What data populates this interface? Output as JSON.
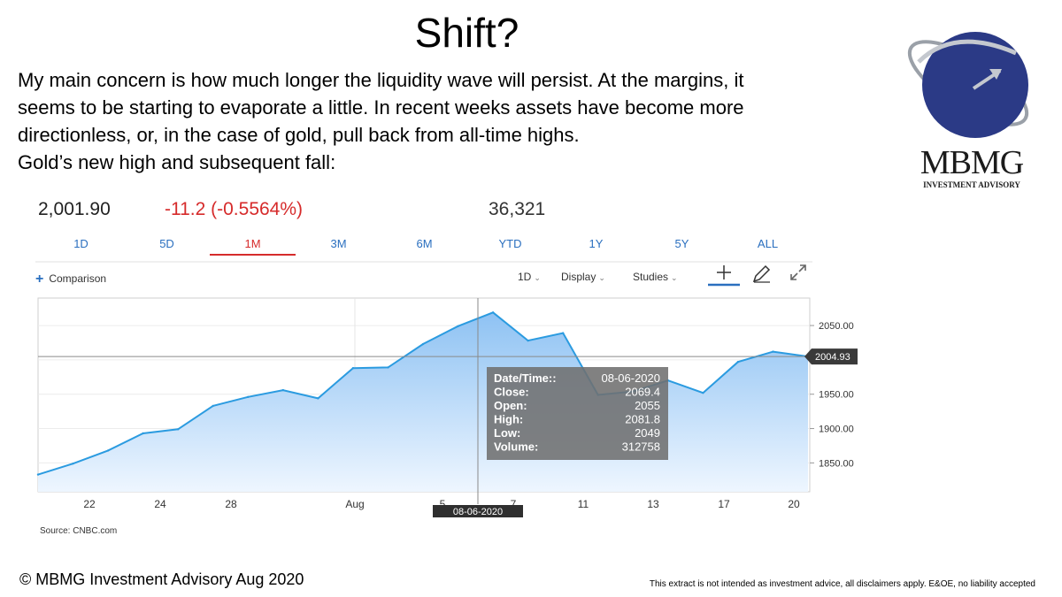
{
  "slide": {
    "title": "Shift?",
    "intro": [
      "My main concern is how much longer the liquidity wave will persist. At the margins, it",
      "seems to be starting to evaporate a little. In recent weeks assets have become more",
      "directionless, or, in the case of gold, pull back from all-time highs.",
      "Gold’s new high and subsequent fall:"
    ],
    "source": "Source: CNBC.com",
    "copyright": "© MBMG Investment Advisory Aug 2020",
    "disclaimer": "This extract is not intended as investment advice, all disclaimers apply. E&OE, no liability accepted"
  },
  "logo": {
    "name": "MBMG",
    "sub": "INVESTMENT ADVISORY",
    "colors": {
      "globe": "#2b3a86",
      "swoosh": "#9aa0a8"
    }
  },
  "quote": {
    "price": "2,001.90",
    "change": "-11.2 (-0.5564%)",
    "volume": "36,321"
  },
  "ranges": {
    "items": [
      "1D",
      "5D",
      "1M",
      "3M",
      "6M",
      "YTD",
      "1Y",
      "5Y",
      "ALL"
    ],
    "active": "1M"
  },
  "toolbar": {
    "comparison": "Comparison",
    "interval": "1D",
    "display": "Display",
    "studies": "Studies",
    "icons": [
      "crosshair-icon",
      "pencil-icon",
      "expand-icon"
    ]
  },
  "chart_data": {
    "type": "area",
    "x_tick_labels": [
      "22",
      "24",
      "28",
      "Aug",
      "5",
      "7",
      "11",
      "13",
      "17",
      "20"
    ],
    "y_ticks": [
      1850,
      1900,
      1950,
      2000,
      2050
    ],
    "y_tick_labels": [
      "1850.00",
      "1900.00",
      "1950.00",
      "",
      "2050.00"
    ],
    "ylim": [
      1808,
      2090
    ],
    "values": [
      1833,
      1849,
      1868,
      1893,
      1899,
      1933,
      1946,
      1956,
      1944,
      1988,
      1989,
      2023,
      2049,
      2069,
      2028,
      2039,
      1949,
      1954,
      1970,
      1952,
      1997,
      2012,
      2004.93
    ],
    "last_value_label": "2004.93",
    "crosshair": {
      "index": 13,
      "date_label": "08-06-2020",
      "tooltip": [
        {
          "label": "Date/Time::",
          "value": "08-06-2020"
        },
        {
          "label": "Close:",
          "value": "2069.4"
        },
        {
          "label": "Open:",
          "value": "2055"
        },
        {
          "label": "High:",
          "value": "2081.8"
        },
        {
          "label": "Low:",
          "value": "2049"
        },
        {
          "label": "Volume:",
          "value": "312758"
        }
      ]
    },
    "colors": {
      "line": "#2b9be0",
      "fill_top": "#8ec2f3",
      "fill_bottom": "#eef6ff",
      "grid": "#cfcfcf",
      "badge": "#3a3a3a"
    }
  }
}
